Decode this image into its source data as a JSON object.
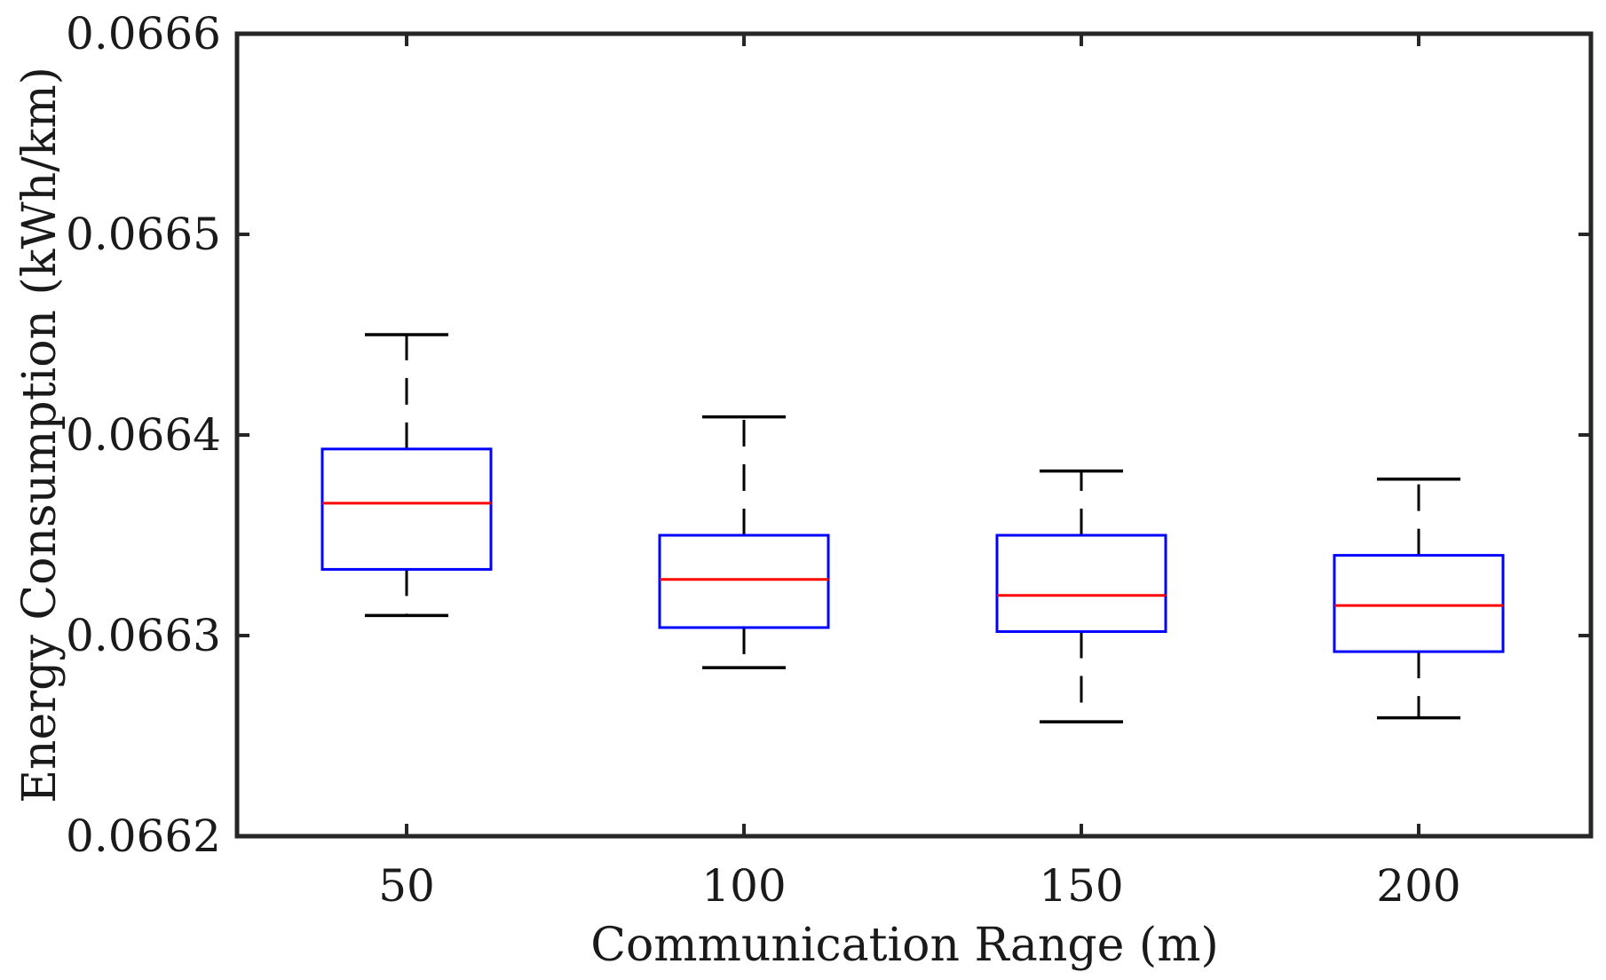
{
  "chart_data": {
    "type": "boxplot",
    "title": "",
    "xlabel": "Communication Range (m)",
    "ylabel": "Energy Consumption (kWh/km)",
    "categories": [
      "50",
      "100",
      "150",
      "200"
    ],
    "ylim": [
      0.0662,
      0.0666
    ],
    "yticks": [
      0.0662,
      0.0663,
      0.0664,
      0.0665,
      0.0666
    ],
    "ytick_labels": [
      "0.0662",
      "0.0663",
      "0.0664",
      "0.0665",
      "0.0666"
    ],
    "grid": false,
    "legend": "none",
    "colors": {
      "box": "#0000ff",
      "median": "#ff0000",
      "whisker": "#000000",
      "axis": "#262626"
    },
    "boxes": [
      {
        "category": "50",
        "whisker_low": 0.06631,
        "q1": 0.066333,
        "median": 0.066366,
        "q3": 0.066393,
        "whisker_high": 0.06645
      },
      {
        "category": "100",
        "whisker_low": 0.066284,
        "q1": 0.066304,
        "median": 0.066328,
        "q3": 0.06635,
        "whisker_high": 0.066409
      },
      {
        "category": "150",
        "whisker_low": 0.066257,
        "q1": 0.066302,
        "median": 0.06632,
        "q3": 0.06635,
        "whisker_high": 0.066382
      },
      {
        "category": "200",
        "whisker_low": 0.066259,
        "q1": 0.066292,
        "median": 0.066315,
        "q3": 0.06634,
        "whisker_high": 0.066378
      }
    ]
  }
}
